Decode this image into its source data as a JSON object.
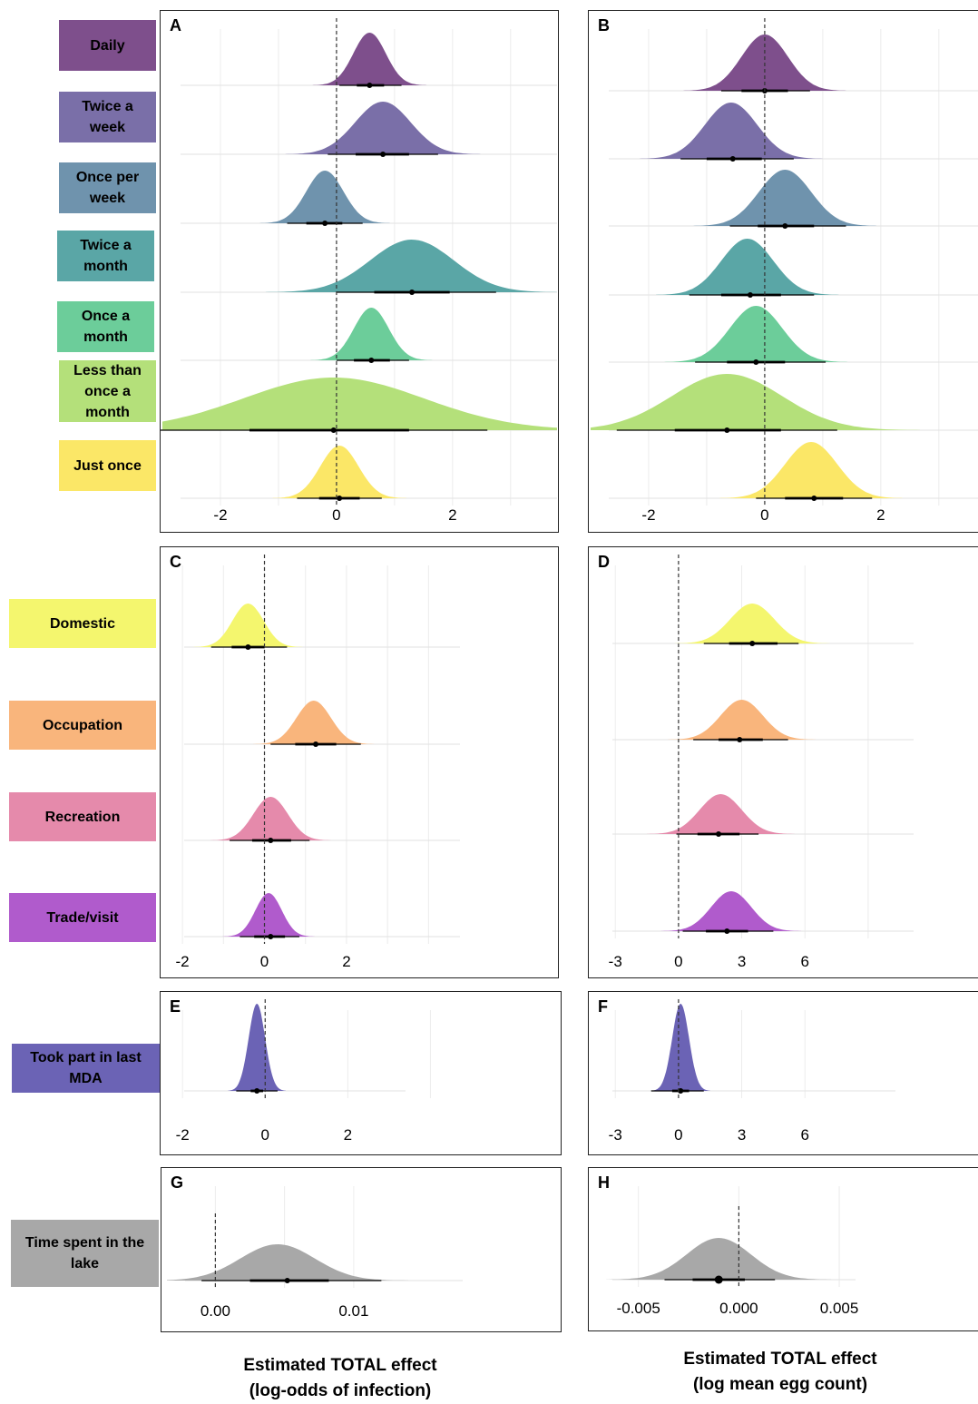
{
  "axis_titles": {
    "left": "Estimated TOTAL effect\n(log-odds of infection)",
    "right": "Estimated TOTAL effect\n(log mean egg count)"
  },
  "groups": {
    "frequency": {
      "categories": [
        {
          "label": "Daily",
          "color": "#7e4f8c"
        },
        {
          "label": "Twice a week",
          "color": "#7a6fa8"
        },
        {
          "label": "Once per week",
          "color": "#6f93ad"
        },
        {
          "label": "Twice  a month",
          "color": "#5aa6a6"
        },
        {
          "label": "Once a month",
          "color": "#6ccd9a"
        },
        {
          "label": "Less than once a month",
          "color": "#b4e07a"
        },
        {
          "label": "Just once",
          "color": "#fbe767"
        }
      ]
    },
    "activity": {
      "categories": [
        {
          "label": "Domestic",
          "color": "#f4f66e"
        },
        {
          "label": "Occupation",
          "color": "#f9b57c"
        },
        {
          "label": "Recreation",
          "color": "#e58aab"
        },
        {
          "label": "Trade/visit",
          "color": "#b05bcc"
        }
      ]
    },
    "mda": {
      "categories": [
        {
          "label": "Took part in last MDA",
          "color": "#6b63b5"
        }
      ]
    },
    "time": {
      "categories": [
        {
          "label": "Time spent in the lake",
          "color": "#a8a8a8"
        }
      ]
    }
  },
  "chart_data": [
    {
      "panel": "A",
      "type": "density",
      "xlim": [
        -3.0,
        3.8
      ],
      "ticks": [
        -2,
        0,
        2
      ],
      "ref_line": 0,
      "rows": [
        {
          "category": "Daily",
          "color": "#7e4f8c",
          "mean": 0.57,
          "sd": 0.28,
          "point": 0.57,
          "inner": [
            0.35,
            0.82
          ],
          "outer": [
            0.05,
            1.12
          ]
        },
        {
          "category": "Twice a week",
          "color": "#7a6fa8",
          "mean": 0.8,
          "sd": 0.48,
          "point": 0.8,
          "inner": [
            0.33,
            1.25
          ],
          "outer": [
            -0.15,
            1.75
          ]
        },
        {
          "category": "Once per week",
          "color": "#6f93ad",
          "mean": -0.2,
          "sd": 0.32,
          "point": -0.2,
          "inner": [
            -0.52,
            0.1
          ],
          "outer": [
            -0.85,
            0.45
          ]
        },
        {
          "category": "Twice  a month",
          "color": "#5aa6a6",
          "mean": 1.3,
          "sd": 0.72,
          "point": 1.3,
          "inner": [
            0.65,
            1.95
          ],
          "outer": [
            0.0,
            2.75
          ]
        },
        {
          "category": "Once a month",
          "color": "#6ccd9a",
          "mean": 0.6,
          "sd": 0.3,
          "point": 0.6,
          "inner": [
            0.3,
            0.92
          ],
          "outer": [
            0.0,
            1.25
          ]
        },
        {
          "category": "Less than once a month",
          "color": "#b4e07a",
          "mean": -0.05,
          "sd": 1.55,
          "point": -0.05,
          "inner": [
            -1.5,
            1.25
          ],
          "outer": [
            -3.3,
            2.6
          ]
        },
        {
          "category": "Just once",
          "color": "#fbe767",
          "mean": 0.05,
          "sd": 0.33,
          "point": 0.05,
          "inner": [
            -0.3,
            0.4
          ],
          "outer": [
            -0.68,
            0.78
          ]
        }
      ]
    },
    {
      "panel": "B",
      "type": "density",
      "xlim": [
        -3.0,
        3.8
      ],
      "ticks": [
        -2,
        0,
        2
      ],
      "ref_line": 0,
      "rows": [
        {
          "category": "Daily",
          "color": "#7e4f8c",
          "mean": 0.0,
          "sd": 0.4,
          "point": 0.0,
          "inner": [
            -0.4,
            0.4
          ],
          "outer": [
            -0.75,
            0.78
          ]
        },
        {
          "category": "Twice a week",
          "color": "#7a6fa8",
          "mean": -0.58,
          "sd": 0.45,
          "point": -0.55,
          "inner": [
            -1.0,
            -0.05
          ],
          "outer": [
            -1.45,
            0.5
          ]
        },
        {
          "category": "Once per week",
          "color": "#6f93ad",
          "mean": 0.35,
          "sd": 0.45,
          "point": 0.35,
          "inner": [
            -0.12,
            0.85
          ],
          "outer": [
            -0.6,
            1.4
          ]
        },
        {
          "category": "Twice  a month",
          "color": "#5aa6a6",
          "mean": -0.3,
          "sd": 0.45,
          "point": -0.25,
          "inner": [
            -0.75,
            0.28
          ],
          "outer": [
            -1.3,
            0.85
          ]
        },
        {
          "category": "Once a month",
          "color": "#6ccd9a",
          "mean": -0.15,
          "sd": 0.45,
          "point": -0.15,
          "inner": [
            -0.65,
            0.35
          ],
          "outer": [
            -1.2,
            1.05
          ]
        },
        {
          "category": "Less than once a month",
          "color": "#b4e07a",
          "mean": -0.65,
          "sd": 0.95,
          "point": -0.65,
          "inner": [
            -1.55,
            0.28
          ],
          "outer": [
            -2.55,
            1.25
          ]
        },
        {
          "category": "Just once",
          "color": "#fbe767",
          "mean": 0.8,
          "sd": 0.45,
          "point": 0.85,
          "inner": [
            0.35,
            1.35
          ],
          "outer": [
            -0.15,
            1.85
          ]
        }
      ]
    },
    {
      "panel": "C",
      "type": "density",
      "xlim": [
        -2.4,
        7.0
      ],
      "ticks": [
        -2,
        0,
        2
      ],
      "ref_line": 0,
      "rows": [
        {
          "category": "Domestic",
          "color": "#f4f66e",
          "mean": -0.4,
          "sd": 0.38,
          "point": -0.4,
          "inner": [
            -0.8,
            0.0
          ],
          "outer": [
            -1.3,
            0.55
          ]
        },
        {
          "category": "Occupation",
          "color": "#f9b57c",
          "mean": 1.2,
          "sd": 0.42,
          "point": 1.25,
          "inner": [
            0.75,
            1.75
          ],
          "outer": [
            0.15,
            2.35
          ]
        },
        {
          "category": "Recreation",
          "color": "#e58aab",
          "mean": 0.15,
          "sd": 0.42,
          "point": 0.15,
          "inner": [
            -0.3,
            0.65
          ],
          "outer": [
            -0.85,
            1.1
          ]
        },
        {
          "category": "Trade/visit",
          "color": "#b05bcc",
          "mean": 0.1,
          "sd": 0.32,
          "point": 0.15,
          "inner": [
            -0.25,
            0.5
          ],
          "outer": [
            -0.6,
            0.85
          ]
        }
      ]
    },
    {
      "panel": "D",
      "type": "density",
      "xlim": [
        -4.0,
        14.3
      ],
      "ticks": [
        -3,
        0,
        3,
        6
      ],
      "ref_line": 0,
      "rows": [
        {
          "category": "Domestic",
          "color": "#f4f66e",
          "mean": 3.5,
          "sd": 1.05,
          "point": 3.5,
          "inner": [
            2.4,
            4.7
          ],
          "outer": [
            1.2,
            5.7
          ]
        },
        {
          "category": "Occupation",
          "color": "#f9b57c",
          "mean": 3.0,
          "sd": 1.0,
          "point": 2.9,
          "inner": [
            1.9,
            4.0
          ],
          "outer": [
            0.7,
            5.2
          ]
        },
        {
          "category": "Recreation",
          "color": "#e58aab",
          "mean": 2.0,
          "sd": 1.0,
          "point": 1.9,
          "inner": [
            0.9,
            2.9
          ],
          "outer": [
            -0.1,
            3.8
          ]
        },
        {
          "category": "Trade/visit",
          "color": "#b05bcc",
          "mean": 2.5,
          "sd": 0.95,
          "point": 2.3,
          "inner": [
            1.3,
            3.3
          ],
          "outer": [
            0.2,
            4.5
          ]
        }
      ]
    },
    {
      "panel": "E",
      "type": "density",
      "xlim": [
        -2.4,
        7.0
      ],
      "ticks": [
        -2,
        0,
        2
      ],
      "ref_line": 0,
      "rows": [
        {
          "category": "Took part in last MDA",
          "color": "#6b63b5",
          "mean": -0.2,
          "sd": 0.2,
          "point": -0.2,
          "inner": [
            -0.35,
            -0.05
          ],
          "outer": [
            -0.7,
            0.3
          ]
        }
      ]
    },
    {
      "panel": "F",
      "type": "density",
      "xlim": [
        -4.0,
        14.3
      ],
      "ticks": [
        -3,
        0,
        3,
        6
      ],
      "ref_line": 0,
      "rows": [
        {
          "category": "Took part in last MDA",
          "color": "#6b63b5",
          "mean": 0.1,
          "sd": 0.4,
          "point": 0.1,
          "inner": [
            -0.3,
            0.5
          ],
          "outer": [
            -1.3,
            1.2
          ]
        }
      ]
    },
    {
      "panel": "G",
      "type": "density",
      "xlim": [
        -0.0035,
        0.0245
      ],
      "ticks": [
        0.0,
        0.01
      ],
      "tick_labels": [
        "0.00",
        "0.01"
      ],
      "ref_line": 0,
      "rows": [
        {
          "category": "Time spent in the lake",
          "color": "#a8a8a8",
          "mean": 0.0045,
          "sd": 0.0027,
          "point": 0.0052,
          "inner": [
            0.0025,
            0.0082
          ],
          "outer": [
            -0.001,
            0.012
          ]
        }
      ]
    },
    {
      "panel": "H",
      "type": "density",
      "xlim": [
        -0.0072,
        0.012
      ],
      "ticks": [
        -0.005,
        0.0,
        0.005
      ],
      "tick_labels": [
        "-0.005",
        "0.000",
        "0.005"
      ],
      "ref_line": 0,
      "rows": [
        {
          "category": "Time spent in the lake",
          "color": "#a8a8a8",
          "mean": -0.001,
          "sd": 0.0016,
          "point": -0.001,
          "inner": [
            -0.0023,
            0.0003
          ],
          "outer": [
            -0.0037,
            0.0018
          ]
        }
      ]
    }
  ]
}
